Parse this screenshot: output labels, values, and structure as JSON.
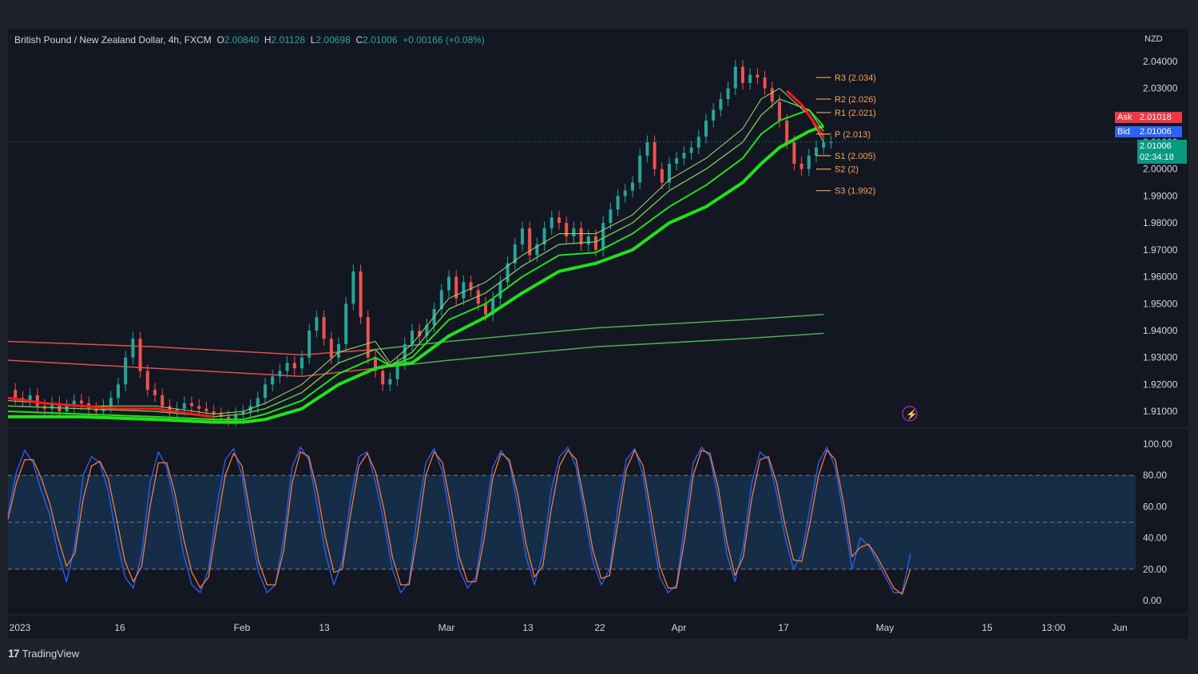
{
  "header": {
    "symbol": "British Pound / New Zealand Dollar, 4h, FXCM",
    "o_label": "O",
    "o": "2.00840",
    "h_label": "H",
    "h": "2.01128",
    "l_label": "L",
    "l": "2.00698",
    "c_label": "C",
    "c": "2.01006",
    "change": "+0.00166 (+0.08%)"
  },
  "currency": "NZD",
  "badges": {
    "ask_label": "Ask",
    "ask": "2.01018",
    "bid_label": "Bid",
    "bid": "2.01006",
    "last": "2.01006",
    "countdown": "02:34:18"
  },
  "footer": {
    "brand": "TradingView"
  },
  "colors": {
    "up": "#26a69a",
    "down": "#ef5350",
    "ema": "#22e01a",
    "pivot": "#f7a350",
    "stoch_k": "#2962ff",
    "stoch_d": "#f57c3a",
    "long_ma_red": "#e0504c",
    "long_ma_green": "#4caf50"
  },
  "chart_data": [
    {
      "type": "line",
      "title": "British Pound / New Zealand Dollar, 4h, FXCM",
      "ylim": [
        1.905,
        2.045
      ],
      "yticks": [
        "2.04000",
        "2.03000",
        "2.02000",
        "2.01000",
        "2.00000",
        "1.99000",
        "1.98000",
        "1.97000",
        "1.96000",
        "1.95000",
        "1.94000",
        "1.93000",
        "1.92000",
        "1.91000"
      ],
      "xticks": [
        "2023",
        "16",
        "Feb",
        "13",
        "Mar",
        "13",
        "22",
        "Apr",
        "17",
        "May",
        "15",
        "13:00",
        "Jun"
      ],
      "series": [
        {
          "key": "close",
          "x": [
            0,
            2,
            4,
            6,
            8,
            10,
            12,
            14,
            16,
            18,
            20,
            22,
            24,
            26,
            28,
            30,
            32,
            34,
            36,
            38,
            40,
            42,
            44,
            46,
            48,
            50,
            52,
            54,
            56,
            58,
            60,
            62,
            64,
            66,
            68,
            70,
            72,
            74,
            76,
            78,
            80,
            82,
            84,
            86,
            88,
            90,
            92,
            94,
            96,
            98,
            100,
            102,
            104,
            106,
            108,
            110,
            112,
            114,
            116,
            118,
            120,
            122,
            124,
            126,
            128,
            130,
            132,
            134,
            136,
            138,
            140,
            142,
            144,
            146,
            148,
            150,
            152,
            154,
            156,
            158,
            160,
            162,
            164,
            166,
            168,
            170,
            172,
            174,
            176,
            178,
            180,
            182,
            184,
            186,
            188,
            190,
            192,
            194,
            196,
            198,
            200,
            202,
            204,
            206,
            208,
            210,
            212,
            214,
            216,
            218,
            220,
            222,
            224
          ],
          "values": [
            1.918,
            1.915,
            1.914,
            1.916,
            1.912,
            1.911,
            1.913,
            1.91,
            1.912,
            1.914,
            1.913,
            1.911,
            1.91,
            1.912,
            1.915,
            1.92,
            1.93,
            1.937,
            1.925,
            1.918,
            1.916,
            1.912,
            1.91,
            1.911,
            1.913,
            1.912,
            1.911,
            1.91,
            1.909,
            1.908,
            1.907,
            1.909,
            1.91,
            1.912,
            1.915,
            1.92,
            1.923,
            1.925,
            1.928,
            1.926,
            1.93,
            1.94,
            1.945,
            1.937,
            1.93,
            1.935,
            1.95,
            1.962,
            1.945,
            1.93,
            1.925,
            1.92,
            1.922,
            1.928,
            1.935,
            1.94,
            1.938,
            1.942,
            1.948,
            1.955,
            1.96,
            1.952,
            1.958,
            1.955,
            1.95,
            1.946,
            1.952,
            1.958,
            1.965,
            1.972,
            1.978,
            1.968,
            1.972,
            1.978,
            1.982,
            1.98,
            1.975,
            1.978,
            1.972,
            1.975,
            1.97,
            1.98,
            1.985,
            1.99,
            1.992,
            1.995,
            2.005,
            2.01,
            2.0,
            1.995,
            2.002,
            2.004,
            2.006,
            2.008,
            2.012,
            2.018,
            2.022,
            2.026,
            2.03,
            2.038,
            2.032,
            2.035,
            2.034,
            2.03,
            2.025,
            2.018,
            2.01,
            2.002,
            2.0,
            2.005,
            2.008,
            2.01,
            2.01
          ]
        },
        {
          "key": "ema_fast",
          "x": [
            0,
            20,
            40,
            56,
            64,
            70,
            80,
            90,
            100,
            104,
            110,
            120,
            130,
            140,
            150,
            160,
            170,
            180,
            190,
            200,
            205,
            210,
            218,
            222
          ],
          "values": [
            1.914,
            1.912,
            1.912,
            1.909,
            1.91,
            1.913,
            1.92,
            1.932,
            1.936,
            1.928,
            1.935,
            1.952,
            1.958,
            1.968,
            1.976,
            1.976,
            1.983,
            1.996,
            2.004,
            2.015,
            2.026,
            2.03,
            2.02,
            2.01
          ]
        },
        {
          "key": "ema_mid",
          "x": [
            0,
            20,
            40,
            56,
            64,
            70,
            80,
            90,
            100,
            104,
            110,
            120,
            130,
            140,
            150,
            160,
            170,
            180,
            190,
            200,
            205,
            210,
            218,
            222
          ],
          "values": [
            1.912,
            1.911,
            1.91,
            1.908,
            1.909,
            1.911,
            1.917,
            1.928,
            1.933,
            1.927,
            1.932,
            1.948,
            1.954,
            1.964,
            1.972,
            1.973,
            1.98,
            1.992,
            2.0,
            2.01,
            2.02,
            2.026,
            2.022,
            2.014
          ]
        },
        {
          "key": "ema_slow",
          "x": [
            0,
            20,
            40,
            56,
            64,
            70,
            80,
            90,
            100,
            104,
            110,
            120,
            130,
            140,
            150,
            160,
            170,
            180,
            190,
            200,
            205,
            210,
            218,
            222
          ],
          "values": [
            1.91,
            1.909,
            1.908,
            1.907,
            1.907,
            1.909,
            1.914,
            1.924,
            1.93,
            1.927,
            1.93,
            1.944,
            1.95,
            1.96,
            1.968,
            1.969,
            1.976,
            1.986,
            1.994,
            2.004,
            2.013,
            2.018,
            2.022,
            2.016
          ]
        },
        {
          "key": "ema_base",
          "x": [
            0,
            20,
            40,
            56,
            64,
            70,
            80,
            90,
            100,
            104,
            110,
            120,
            130,
            140,
            150,
            160,
            170,
            180,
            190,
            200,
            205,
            210,
            218,
            222
          ],
          "values": [
            1.908,
            1.908,
            1.907,
            1.906,
            1.906,
            1.907,
            1.911,
            1.92,
            1.926,
            1.927,
            1.928,
            1.938,
            1.945,
            1.954,
            1.962,
            1.965,
            1.97,
            1.98,
            1.986,
            1.995,
            2.002,
            2.008,
            2.014,
            2.016
          ]
        },
        {
          "key": "ma_long_1",
          "x": [
            0,
            40,
            80,
            100,
            120,
            160,
            200,
            222
          ],
          "values": [
            1.936,
            1.934,
            1.931,
            1.933,
            1.936,
            1.941,
            1.944,
            1.946
          ]
        },
        {
          "key": "ma_long_2",
          "x": [
            0,
            40,
            80,
            100,
            120,
            160,
            200,
            222
          ],
          "values": [
            1.929,
            1.926,
            1.923,
            1.926,
            1.929,
            1.934,
            1.937,
            1.939
          ]
        }
      ],
      "pivots": [
        {
          "label": "R3 (2.034)",
          "value": 2.034
        },
        {
          "label": "R2 (2.026)",
          "value": 2.026
        },
        {
          "label": "R1 (2.021)",
          "value": 2.021
        },
        {
          "label": "P (2.013)",
          "value": 2.013
        },
        {
          "label": "S1 (2.005)",
          "value": 2.005
        },
        {
          "label": "S2 (2)",
          "value": 2.0
        },
        {
          "label": "S3 (1.992)",
          "value": 1.992
        }
      ]
    },
    {
      "type": "line",
      "ylim": [
        -2,
        102
      ],
      "yticks": [
        "100.00",
        "80.00",
        "60.00",
        "40.00",
        "20.00",
        "0.00"
      ],
      "band": [
        20,
        80
      ],
      "midline": 50,
      "series": [
        {
          "key": "stoch_k",
          "values": [
            55,
            82,
            96,
            88,
            70,
            55,
            30,
            12,
            35,
            80,
            92,
            88,
            70,
            40,
            15,
            8,
            30,
            75,
            95,
            85,
            60,
            30,
            10,
            5,
            20,
            60,
            90,
            97,
            80,
            45,
            18,
            5,
            10,
            40,
            85,
            98,
            90,
            60,
            30,
            10,
            25,
            65,
            92,
            95,
            75,
            50,
            20,
            5,
            12,
            55,
            88,
            97,
            82,
            50,
            20,
            8,
            15,
            50,
            85,
            96,
            88,
            60,
            28,
            10,
            30,
            70,
            92,
            98,
            85,
            55,
            25,
            10,
            20,
            60,
            90,
            97,
            80,
            45,
            15,
            5,
            10,
            50,
            88,
            98,
            92,
            65,
            30,
            12,
            35,
            75,
            95,
            90,
            68,
            40,
            20,
            30,
            60,
            88,
            98,
            85,
            55,
            20,
            40,
            35,
            25,
            15,
            5,
            5,
            30
          ]
        },
        {
          "key": "stoch_d",
          "values": [
            52,
            75,
            90,
            90,
            78,
            62,
            40,
            22,
            30,
            65,
            86,
            89,
            78,
            52,
            25,
            12,
            22,
            60,
            88,
            88,
            68,
            40,
            18,
            8,
            15,
            48,
            80,
            94,
            86,
            55,
            25,
            10,
            10,
            32,
            75,
            95,
            92,
            70,
            40,
            18,
            20,
            55,
            86,
            94,
            82,
            58,
            28,
            10,
            10,
            42,
            80,
            95,
            88,
            60,
            28,
            12,
            12,
            40,
            78,
            94,
            90,
            68,
            36,
            15,
            22,
            58,
            86,
            96,
            90,
            62,
            32,
            14,
            16,
            50,
            84,
            96,
            86,
            55,
            22,
            8,
            8,
            40,
            80,
            96,
            94,
            72,
            38,
            16,
            28,
            65,
            90,
            92,
            75,
            48,
            26,
            25,
            50,
            80,
            96,
            90,
            62,
            28,
            34,
            36,
            28,
            18,
            8,
            4,
            20
          ]
        }
      ]
    }
  ]
}
